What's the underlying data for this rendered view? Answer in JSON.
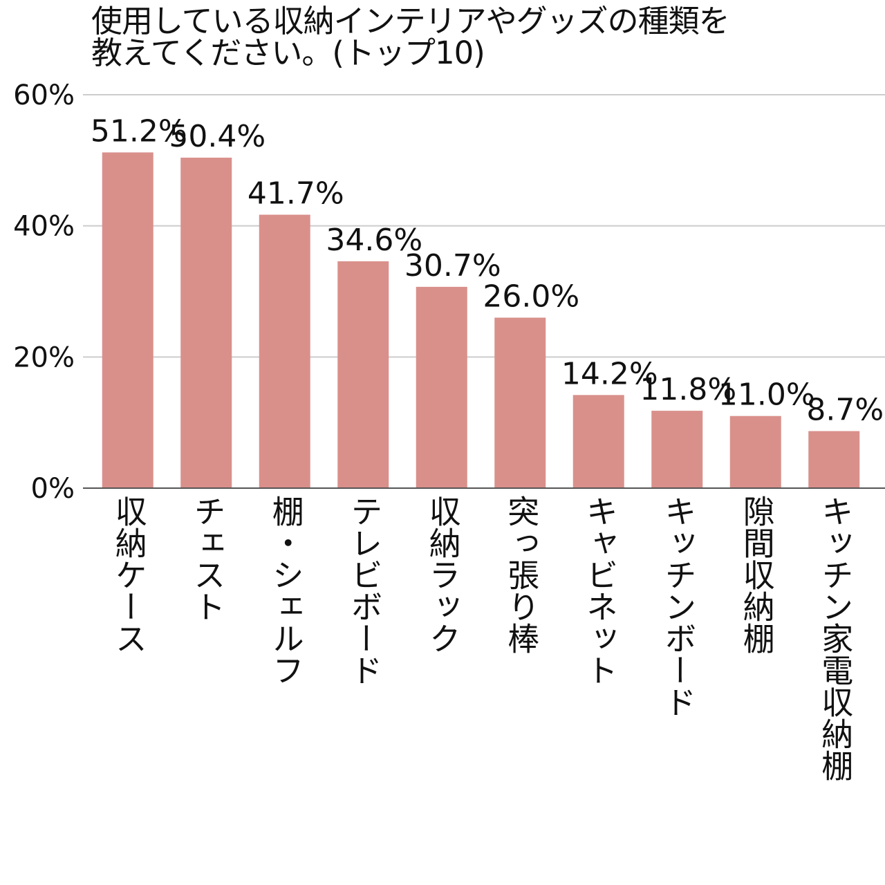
{
  "chart_data": {
    "type": "bar",
    "title": "使用している収納インテリアやグッズの種類を\n教えてください。(トップ10)",
    "xlabel": "",
    "ylabel": "",
    "ylim": [
      0,
      60
    ],
    "yticks": [
      0,
      20,
      40,
      60
    ],
    "ytick_labels": [
      "0%",
      "20%",
      "40%",
      "60%"
    ],
    "grid": true,
    "legend": "none",
    "bar_color": "#d9908b",
    "grid_color": "#cccccc",
    "axis_color": "#555555",
    "categories": [
      "収納ケース",
      "チェスト",
      "棚・シェルフ",
      "テレビボード",
      "収納ラック",
      "突っ張り棒",
      "キャビネット",
      "キッチンボード",
      "隙間収納棚",
      "キッチン家電収納棚"
    ],
    "values": [
      51.2,
      50.4,
      41.7,
      34.6,
      30.7,
      26.0,
      14.2,
      11.8,
      11.0,
      8.7
    ],
    "value_labels": [
      "51.2%",
      "50.4%",
      "41.7%",
      "34.6%",
      "30.7%",
      "26.0%",
      "14.2%",
      "11.8%",
      "11.0%",
      "8.7%"
    ]
  }
}
